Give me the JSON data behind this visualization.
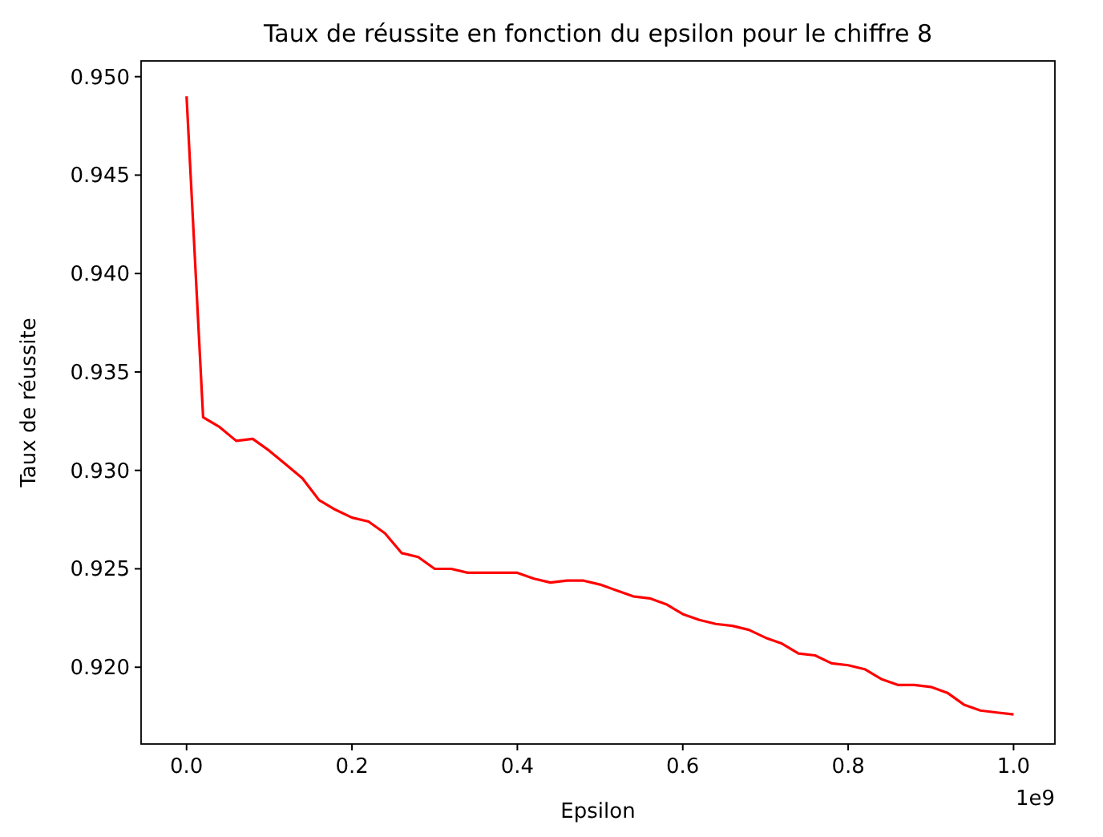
{
  "chart_data": {
    "type": "line",
    "title": "Taux de réussite en fonction du epsilon pour le chiffre 8",
    "xlabel": "Epsilon",
    "ylabel": "Taux de réussite",
    "annotations": [
      "1e9"
    ],
    "x": [
      0,
      0.02,
      0.04,
      0.06,
      0.08,
      0.1,
      0.12,
      0.14,
      0.16,
      0.18,
      0.2,
      0.22,
      0.24,
      0.26,
      0.28,
      0.3,
      0.32,
      0.34,
      0.36,
      0.38,
      0.4,
      0.42,
      0.44,
      0.46,
      0.48,
      0.5,
      0.52,
      0.54,
      0.56,
      0.58,
      0.6,
      0.62,
      0.64,
      0.66,
      0.68,
      0.7,
      0.72,
      0.74,
      0.76,
      0.78,
      0.8,
      0.82,
      0.84,
      0.86,
      0.88,
      0.9,
      0.92,
      0.94,
      0.96,
      0.98,
      1.0
    ],
    "series": [
      {
        "color": "#ff0000",
        "values": [
          0.949,
          0.9327,
          0.9322,
          0.9315,
          0.9316,
          0.931,
          0.9303,
          0.9296,
          0.9285,
          0.928,
          0.9276,
          0.9274,
          0.9268,
          0.9258,
          0.9256,
          0.925,
          0.925,
          0.9248,
          0.9248,
          0.9248,
          0.9248,
          0.9245,
          0.9243,
          0.9244,
          0.9244,
          0.9242,
          0.9239,
          0.9236,
          0.9235,
          0.9232,
          0.9227,
          0.9224,
          0.9222,
          0.9221,
          0.9219,
          0.9215,
          0.9212,
          0.9207,
          0.9206,
          0.9202,
          0.9201,
          0.9199,
          0.9194,
          0.9191,
          0.9191,
          0.919,
          0.9187,
          0.9181,
          0.9178,
          0.9177,
          0.9176
        ]
      }
    ],
    "xlim": [
      -0.055,
      1.05
    ],
    "ylim": [
      0.9161,
      0.9508
    ],
    "xticks": [
      {
        "value": 0,
        "label": "0.0"
      },
      0.2,
      0.4,
      0.6,
      0.8,
      {
        "value": 1,
        "label": "1.0"
      }
    ],
    "yticks": [
      {
        "value": 0.92,
        "label": "0.920"
      },
      0.925,
      {
        "value": 0.93,
        "label": "0.930"
      },
      0.935,
      {
        "value": 0.94,
        "label": "0.940"
      },
      0.945,
      {
        "value": 0.95,
        "label": "0.950"
      }
    ],
    "grid": false,
    "marker": "none",
    "line_style": "solid"
  }
}
